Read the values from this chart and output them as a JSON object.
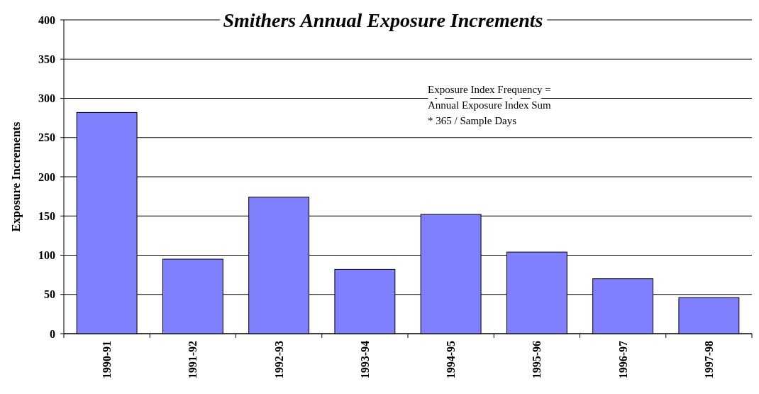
{
  "chart_data": {
    "type": "bar",
    "title": "Smithers Annual Exposure Increments",
    "ylabel": "Exposure Increments",
    "categories": [
      "1990-91",
      "1991-92",
      "1992-93",
      "1993-94",
      "1994-95",
      "1995-96",
      "1996-97",
      "1997-98"
    ],
    "values": [
      282,
      95,
      174,
      82,
      152,
      104,
      70,
      46
    ],
    "color": "#8080ff",
    "ylim": [
      0,
      400
    ],
    "yticks": [
      0,
      50,
      100,
      150,
      200,
      250,
      300,
      350,
      400
    ],
    "grid": "y",
    "annotations": [
      "Exposure Index Frequency =\nAnnual Exposure Index Sum\n* 365 / Sample Days"
    ]
  }
}
